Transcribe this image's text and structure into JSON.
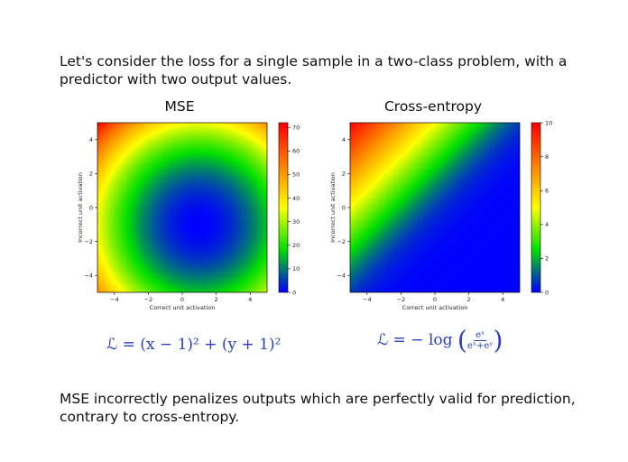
{
  "intro_text": "Let's consider the loss for a single sample in a two-class problem, with a predictor with two output values.",
  "conclusion_text": "MSE incorrectly penalizes outputs which are perfectly valid for prediction, contrary to cross-entropy.",
  "formulas": {
    "mse": "ℒ = (x − 1)² + (y + 1)²",
    "ce_lhs": "ℒ = − log",
    "ce_num": "eˣ",
    "ce_den": "eˣ+eʸ"
  },
  "colors": {
    "formula": "#2b3fbf",
    "colormap": [
      "#0000ff",
      "#00e000",
      "#ffff00",
      "#ff8000",
      "#ff0000"
    ]
  },
  "chart_data": [
    {
      "type": "heatmap",
      "title": "MSE",
      "function": "(x-1)^2+(y+1)^2",
      "xlabel": "Correct unit activation",
      "ylabel": "Incorrect unit activation",
      "xlim": [
        -5,
        5
      ],
      "ylim": [
        -5,
        5
      ],
      "x_ticks": [
        -4,
        -2,
        0,
        2,
        4
      ],
      "y_ticks": [
        -4,
        -2,
        0,
        2,
        4
      ],
      "x_tick_labels": [
        "−4",
        "−2",
        "0",
        "2",
        "4"
      ],
      "y_tick_labels": [
        "−4",
        "−2",
        "0",
        "2",
        "4"
      ],
      "colorbar_range": [
        0,
        72
      ],
      "colorbar_ticks": [
        0,
        10,
        20,
        30,
        40,
        50,
        60,
        70
      ],
      "colorbar_tick_labels": [
        "0",
        "10",
        "20",
        "30",
        "40",
        "50",
        "60",
        "70"
      ]
    },
    {
      "type": "heatmap",
      "title": "Cross-entropy",
      "function": "-log(e^x/(e^x+e^y))",
      "xlabel": "Correct unit activation",
      "ylabel": "Incorrect unit activation",
      "xlim": [
        -5,
        5
      ],
      "ylim": [
        -5,
        5
      ],
      "x_ticks": [
        -4,
        -2,
        0,
        2,
        4
      ],
      "y_ticks": [
        -4,
        -2,
        0,
        2,
        4
      ],
      "x_tick_labels": [
        "−4",
        "−2",
        "0",
        "2",
        "4"
      ],
      "y_tick_labels": [
        "−4",
        "−2",
        "0",
        "2",
        "4"
      ],
      "colorbar_range": [
        0,
        10
      ],
      "colorbar_ticks": [
        0,
        2,
        4,
        6,
        8,
        10
      ],
      "colorbar_tick_labels": [
        "0",
        "2",
        "4",
        "6",
        "8",
        "10"
      ]
    }
  ]
}
